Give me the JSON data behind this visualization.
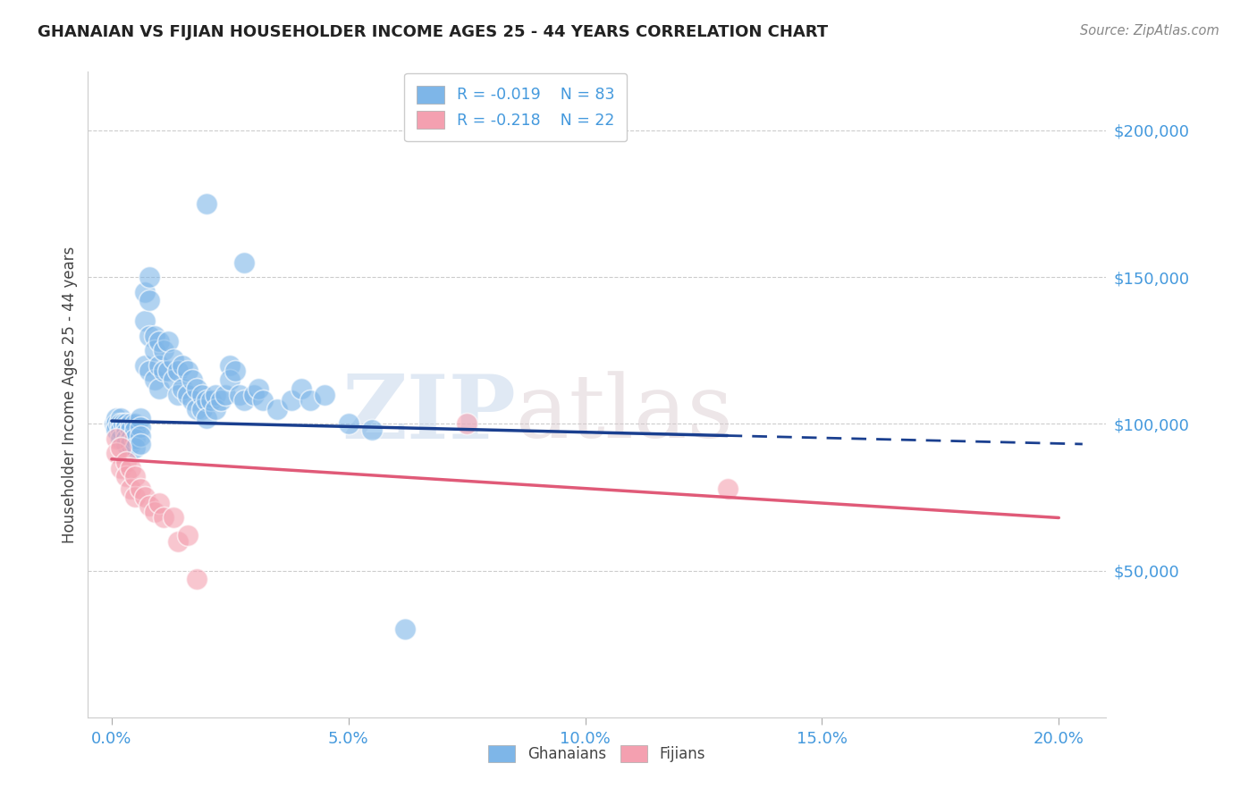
{
  "title": "GHANAIAN VS FIJIAN HOUSEHOLDER INCOME AGES 25 - 44 YEARS CORRELATION CHART",
  "source": "Source: ZipAtlas.com",
  "ylabel": "Householder Income Ages 25 - 44 years",
  "ytick_labels": [
    "$50,000",
    "$100,000",
    "$150,000",
    "$200,000"
  ],
  "ytick_vals": [
    50000,
    100000,
    150000,
    200000
  ],
  "xtick_labels": [
    "0.0%",
    "5.0%",
    "10.0%",
    "15.0%",
    "20.0%"
  ],
  "xtick_vals": [
    0.0,
    0.05,
    0.1,
    0.15,
    0.2
  ],
  "ylim": [
    0,
    220000
  ],
  "xlim": [
    -0.005,
    0.21
  ],
  "ghanaian_R": -0.019,
  "ghanaian_N": 83,
  "fijian_R": -0.218,
  "fijian_N": 22,
  "ghanaian_color": "#7EB6E8",
  "fijian_color": "#F4A0B0",
  "ghanaian_line_color": "#1A3F8F",
  "fijian_line_color": "#E05A78",
  "ghanaian_line_dash": "--",
  "label_color": "#4499DD",
  "watermark": "ZIPatlas",
  "background_color": "#ffffff",
  "ghanaian_x": [
    0.0005,
    0.001,
    0.001,
    0.001,
    0.0015,
    0.002,
    0.002,
    0.002,
    0.002,
    0.0025,
    0.003,
    0.003,
    0.003,
    0.003,
    0.003,
    0.004,
    0.004,
    0.004,
    0.004,
    0.005,
    0.005,
    0.005,
    0.005,
    0.006,
    0.006,
    0.006,
    0.006,
    0.007,
    0.007,
    0.007,
    0.008,
    0.008,
    0.008,
    0.008,
    0.009,
    0.009,
    0.009,
    0.01,
    0.01,
    0.01,
    0.011,
    0.011,
    0.012,
    0.012,
    0.013,
    0.013,
    0.014,
    0.014,
    0.015,
    0.015,
    0.016,
    0.016,
    0.017,
    0.017,
    0.018,
    0.018,
    0.019,
    0.019,
    0.02,
    0.02,
    0.021,
    0.022,
    0.022,
    0.023,
    0.024,
    0.025,
    0.025,
    0.026,
    0.027,
    0.028,
    0.03,
    0.031,
    0.032,
    0.035,
    0.038,
    0.04,
    0.042,
    0.045,
    0.05,
    0.055,
    0.062,
    0.02,
    0.028
  ],
  "ghanaian_y": [
    100000,
    102000,
    100000,
    98000,
    100000,
    102000,
    100000,
    98000,
    95000,
    100000,
    100000,
    99000,
    97000,
    95000,
    93000,
    100000,
    98000,
    95000,
    93000,
    100000,
    98000,
    95000,
    92000,
    102000,
    99000,
    96000,
    93000,
    145000,
    135000,
    120000,
    150000,
    142000,
    130000,
    118000,
    130000,
    125000,
    115000,
    128000,
    120000,
    112000,
    125000,
    118000,
    128000,
    118000,
    122000,
    115000,
    118000,
    110000,
    120000,
    112000,
    118000,
    110000,
    115000,
    108000,
    112000,
    105000,
    110000,
    105000,
    108000,
    102000,
    108000,
    110000,
    105000,
    108000,
    110000,
    120000,
    115000,
    118000,
    110000,
    108000,
    110000,
    112000,
    108000,
    105000,
    108000,
    112000,
    108000,
    110000,
    100000,
    98000,
    30000,
    175000,
    155000
  ],
  "fijian_x": [
    0.001,
    0.001,
    0.002,
    0.002,
    0.003,
    0.003,
    0.004,
    0.004,
    0.005,
    0.005,
    0.006,
    0.007,
    0.008,
    0.009,
    0.01,
    0.011,
    0.013,
    0.014,
    0.016,
    0.018,
    0.075,
    0.13
  ],
  "fijian_y": [
    95000,
    90000,
    92000,
    85000,
    87000,
    82000,
    85000,
    78000,
    82000,
    75000,
    78000,
    75000,
    72000,
    70000,
    73000,
    68000,
    68000,
    60000,
    62000,
    47000,
    100000,
    78000
  ],
  "gh_line_x0": 0.0,
  "gh_line_y0": 101000,
  "gh_line_x1": 0.13,
  "gh_line_y1": 96000,
  "fi_line_x0": 0.0,
  "fi_line_y0": 88000,
  "fi_line_x1": 0.2,
  "fi_line_y1": 68000
}
